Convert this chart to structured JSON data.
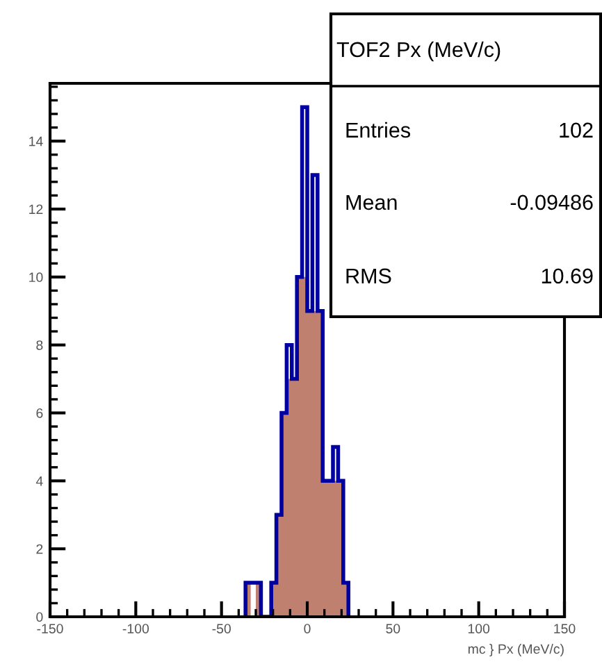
{
  "chart_data": {
    "type": "histogram",
    "title": "TOF2 Px (MeV/c)",
    "xlabel": "mc } Px (MeV/c)",
    "bins": [
      -36,
      -33,
      -30,
      -27,
      -24,
      -21,
      -18,
      -15,
      -12,
      -9,
      -6,
      -3,
      0,
      3,
      6,
      9,
      12,
      15,
      18,
      21,
      24
    ],
    "series": [
      {
        "color": "#c08070",
        "values": [
          1,
          0,
          1,
          0,
          0,
          1,
          3,
          6,
          7,
          7,
          10,
          10,
          9,
          9,
          9,
          4,
          4,
          4,
          4,
          1
        ]
      },
      {
        "line_style": "solid",
        "color": "#0000a0",
        "values": [
          1,
          1,
          1,
          0,
          0,
          1,
          3,
          6,
          8,
          7,
          10,
          15,
          9,
          13,
          9,
          4,
          4,
          5,
          4,
          1
        ]
      }
    ],
    "xlim": [
      -150,
      150
    ],
    "xticks": [
      -150,
      -100,
      -50,
      0,
      50,
      100,
      150
    ],
    "ylim": [
      0,
      15.7
    ],
    "yticks": [
      0,
      2,
      4,
      6,
      8,
      10,
      12,
      14
    ],
    "grid": false,
    "annotations": [
      "Entries",
      "102",
      "Mean",
      "-0.09486",
      "RMS",
      "10.69"
    ]
  }
}
